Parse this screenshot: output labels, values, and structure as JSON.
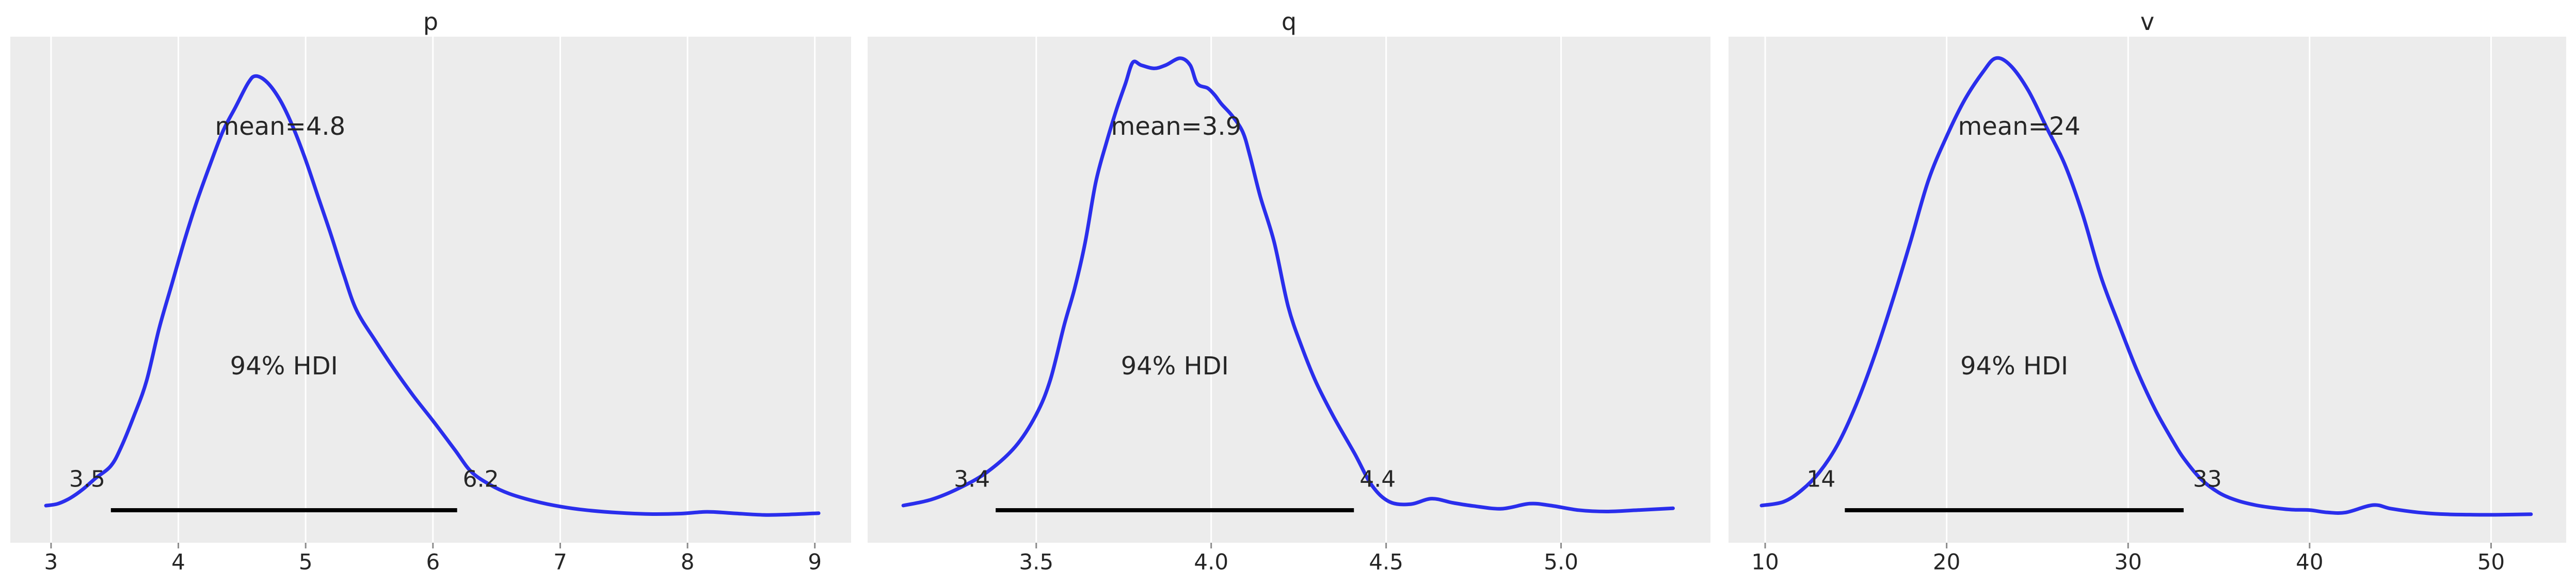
{
  "style": {
    "figure_background": "#ffffff",
    "panel_background": "#ececec",
    "grid_color": "#ffffff",
    "curve_color": "#2a2eec",
    "hdi_bar_color": "#000000",
    "text_color": "#262626",
    "tick_mark_color": "#8b8b8b"
  },
  "chart_data": [
    {
      "type": "kde-posterior",
      "title": "p",
      "mean": 4.8,
      "mean_label": "mean=4.8",
      "hdi_text": "94% HDI",
      "hdi_prob": 0.94,
      "hdi_bound_labels": [
        "3.5",
        "6.2"
      ],
      "hdi_interval": [
        3.47,
        6.19
      ],
      "x_tick_labels": [
        "3",
        "4",
        "5",
        "6",
        "7",
        "8",
        "9"
      ],
      "x_ticks": [
        3,
        4,
        5,
        6,
        7,
        8,
        9
      ],
      "xlim": [
        2.68,
        9.285
      ],
      "ylim": [
        -0.056,
        1.089
      ],
      "kde_x": [
        2.96,
        3.05,
        3.15,
        3.25,
        3.35,
        3.47,
        3.55,
        3.65,
        3.75,
        3.85,
        3.95,
        4.05,
        4.15,
        4.25,
        4.35,
        4.45,
        4.55,
        4.61,
        4.7,
        4.8,
        4.9,
        5.0,
        5.1,
        5.2,
        5.3,
        5.4,
        5.55,
        5.7,
        5.85,
        6.0,
        6.17,
        6.3,
        6.45,
        6.6,
        6.8,
        7.0,
        7.2,
        7.45,
        7.7,
        7.95,
        8.15,
        8.35,
        8.6,
        8.8,
        9.03
      ],
      "kde_density": [
        0.028,
        0.032,
        0.045,
        0.065,
        0.09,
        0.118,
        0.16,
        0.23,
        0.31,
        0.43,
        0.53,
        0.63,
        0.72,
        0.8,
        0.875,
        0.93,
        0.985,
        1.0,
        0.985,
        0.945,
        0.885,
        0.81,
        0.725,
        0.64,
        0.55,
        0.47,
        0.4,
        0.335,
        0.275,
        0.22,
        0.155,
        0.105,
        0.075,
        0.055,
        0.038,
        0.026,
        0.018,
        0.012,
        0.009,
        0.01,
        0.014,
        0.011,
        0.007,
        0.008,
        0.011
      ]
    },
    {
      "type": "kde-posterior",
      "title": "q",
      "mean": 3.9,
      "mean_label": "mean=3.9",
      "hdi_text": "94% HDI",
      "hdi_prob": 0.94,
      "hdi_bound_labels": [
        "3.4",
        "4.4"
      ],
      "hdi_interval": [
        3.384,
        4.408
      ],
      "x_tick_labels": [
        "3.5",
        "4.0",
        "4.5",
        "5.0"
      ],
      "x_ticks": [
        3.5,
        4.0,
        4.5,
        5.0
      ],
      "xlim": [
        3.018,
        5.427
      ],
      "ylim": [
        -0.054,
        1.047
      ],
      "kde_x": [
        3.12,
        3.2,
        3.28,
        3.36,
        3.44,
        3.5,
        3.54,
        3.58,
        3.61,
        3.64,
        3.67,
        3.7,
        3.73,
        3.755,
        3.776,
        3.8,
        3.837,
        3.87,
        3.911,
        3.94,
        3.96,
        3.99,
        4.01,
        4.03,
        4.06,
        4.09,
        4.11,
        4.14,
        4.18,
        4.22,
        4.26,
        4.3,
        4.35,
        4.41,
        4.46,
        4.51,
        4.57,
        4.63,
        4.69,
        4.75,
        4.83,
        4.91,
        4.97,
        5.05,
        5.13,
        5.22,
        5.32
      ],
      "kde_density": [
        0.027,
        0.04,
        0.065,
        0.1,
        0.155,
        0.225,
        0.3,
        0.42,
        0.5,
        0.6,
        0.73,
        0.815,
        0.89,
        0.945,
        0.991,
        0.985,
        0.978,
        0.985,
        1.0,
        0.985,
        0.945,
        0.935,
        0.92,
        0.9,
        0.875,
        0.84,
        0.79,
        0.7,
        0.6,
        0.46,
        0.37,
        0.295,
        0.22,
        0.14,
        0.07,
        0.035,
        0.03,
        0.042,
        0.033,
        0.026,
        0.02,
        0.031,
        0.027,
        0.017,
        0.014,
        0.017,
        0.021
      ]
    },
    {
      "type": "kde-posterior",
      "title": "v",
      "mean": 24,
      "mean_label": "mean=24",
      "hdi_text": "94% HDI",
      "hdi_prob": 0.94,
      "hdi_bound_labels": [
        "14",
        "33"
      ],
      "hdi_interval": [
        14.39,
        33.06
      ],
      "x_tick_labels": [
        "10",
        "20",
        "30",
        "40",
        "50"
      ],
      "x_ticks": [
        10,
        20,
        30,
        40,
        50
      ],
      "xlim": [
        7.98,
        54.14
      ],
      "ylim": [
        -0.054,
        1.047
      ],
      "kde_x": [
        9.8,
        11,
        12,
        13,
        14,
        15,
        16,
        17,
        18,
        19,
        20,
        21,
        22,
        22.7,
        23.5,
        24.5,
        25.5,
        26.5,
        27.5,
        28.5,
        29.5,
        30.5,
        31.5,
        32.5,
        33.06,
        34,
        35,
        36,
        37,
        38,
        39,
        40,
        41,
        42,
        43.5,
        44.5,
        46,
        47.5,
        49,
        50.5,
        52.2
      ],
      "kde_density": [
        0.027,
        0.035,
        0.06,
        0.1,
        0.16,
        0.245,
        0.35,
        0.47,
        0.6,
        0.735,
        0.83,
        0.91,
        0.97,
        1.0,
        0.985,
        0.93,
        0.85,
        0.77,
        0.66,
        0.525,
        0.42,
        0.32,
        0.235,
        0.165,
        0.13,
        0.085,
        0.055,
        0.038,
        0.028,
        0.022,
        0.018,
        0.017,
        0.012,
        0.012,
        0.028,
        0.02,
        0.012,
        0.008,
        0.007,
        0.007,
        0.008
      ]
    }
  ]
}
